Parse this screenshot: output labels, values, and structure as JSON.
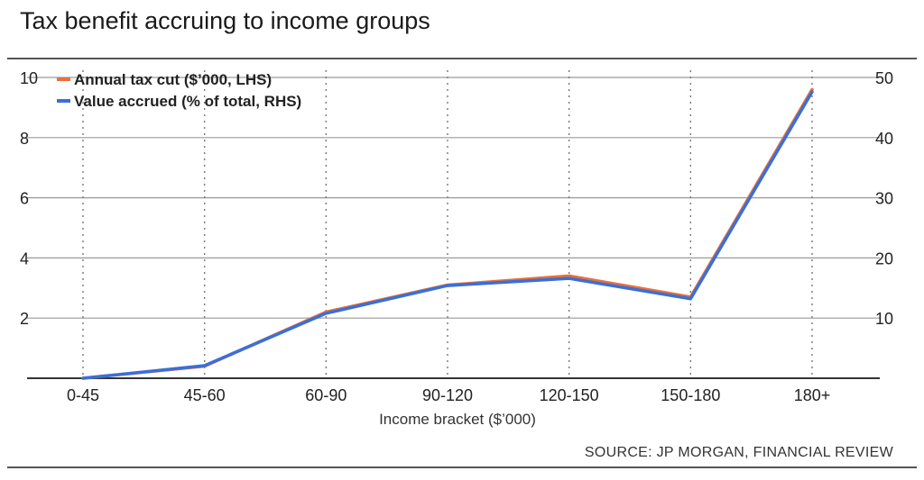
{
  "title": "Tax benefit accruing to income groups",
  "source": "SOURCE: JP MORGAN, FINANCIAL REVIEW",
  "chart_data": {
    "type": "line",
    "title": "Tax benefit accruing to income groups",
    "xlabel": "Income bracket ($’000)",
    "categories": [
      "0-45",
      "45-60",
      "60-90",
      "90-120",
      "120-150",
      "150-180",
      "180+"
    ],
    "y_left": {
      "ticks": [
        "2",
        "4",
        "6",
        "8",
        "10"
      ],
      "ylim": [
        0,
        10
      ]
    },
    "y_right": {
      "ticks": [
        "10",
        "20",
        "30",
        "40",
        "50"
      ],
      "ylim": [
        0,
        50
      ]
    },
    "grid": true,
    "legend_position": "top-left",
    "series": [
      {
        "name": "Annual tax cut ($’000, LHS)",
        "axis": "left",
        "color": "#e8703a",
        "values": [
          0,
          0.4,
          2.2,
          3.1,
          3.4,
          2.7,
          9.6
        ]
      },
      {
        "name": "Value accrued (% of total, RHS)",
        "axis": "right",
        "color": "#3a6fd8",
        "values": [
          0,
          2.1,
          10.8,
          15.4,
          16.6,
          13.2,
          47.6
        ]
      }
    ]
  }
}
